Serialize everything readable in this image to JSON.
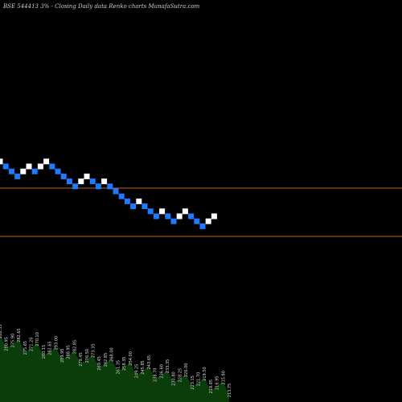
{
  "header": {
    "title": "BSE 544413 3% -  Closing Daily data  Renko  charts MunafaSutra.com"
  },
  "chart_data": {
    "type": "renko",
    "direction_sequence": [
      "up",
      "down",
      "down",
      "down",
      "up",
      "up",
      "down",
      "up",
      "up",
      "down",
      "down",
      "down",
      "down",
      "down",
      "up",
      "up",
      "down",
      "down",
      "up",
      "down",
      "down",
      "down",
      "down",
      "down",
      "up",
      "down",
      "down",
      "down",
      "up",
      "down",
      "down",
      "up",
      "up",
      "down",
      "down",
      "down",
      "up",
      "up"
    ],
    "colors": {
      "up": "#ffffff",
      "down": "#1e7aff",
      "background": "#000000",
      "reference_line": "#b8642a",
      "volume_fill": "#0a3d0a"
    },
    "volume_labels": [
      "288.55",
      "280.95",
      "275.90",
      "282.65",
      "275.65",
      "271.20",
      "270.10",
      "280.15",
      "282.65",
      "293.00",
      "289.95",
      "288.95",
      "282.85",
      "279.45",
      "276.50",
      "273.35",
      "269.45",
      "262.85",
      "268.00",
      "261.35",
      "258.35",
      "254.00",
      "249.25",
      "245.85",
      "243.65",
      "238.70",
      "236.60",
      "233.35",
      "230.80",
      "228.25",
      "226.00",
      "223.15",
      "221.70",
      "219.50",
      "218.85",
      "216.95",
      "215.80",
      "213.75"
    ]
  }
}
